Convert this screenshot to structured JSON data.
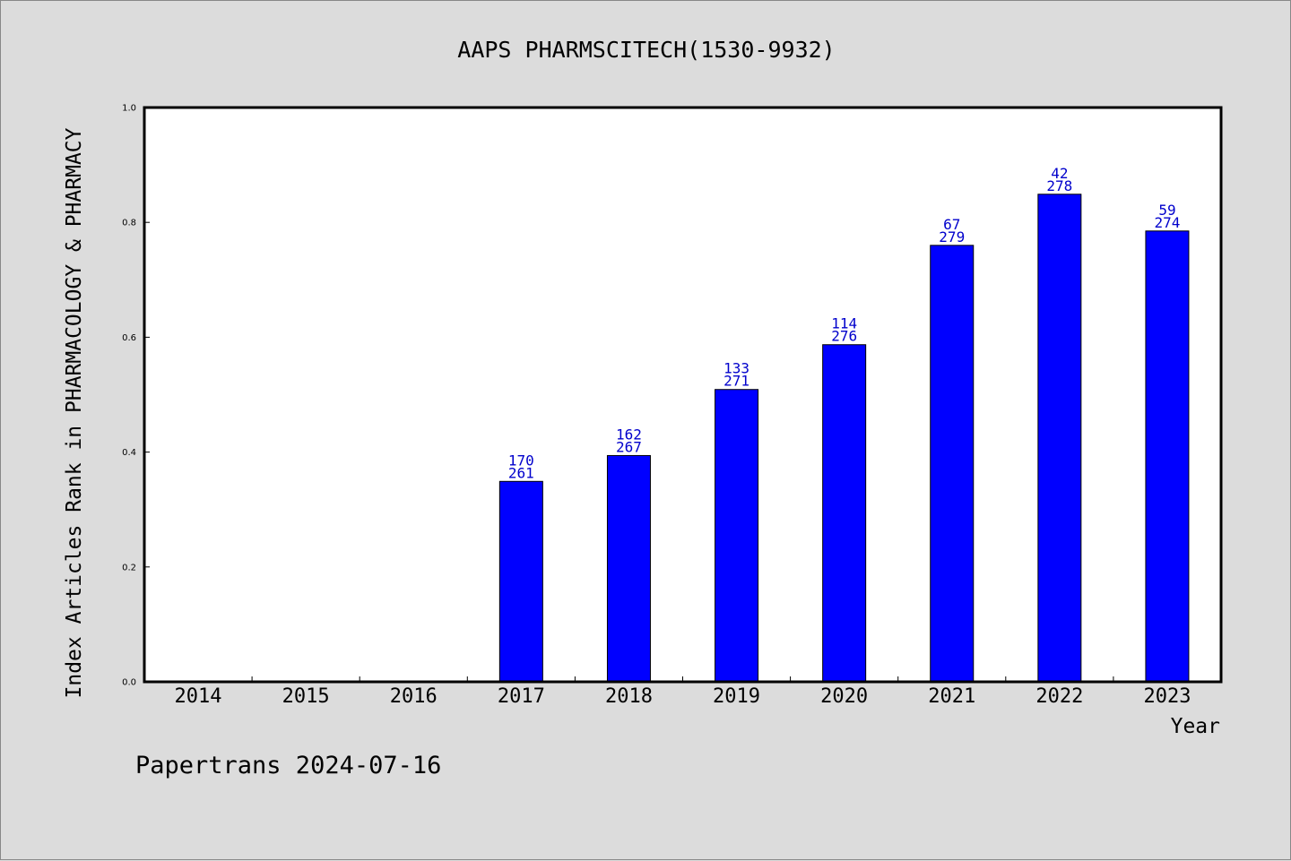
{
  "footer": "Papertrans 2024-07-16",
  "chart_data": {
    "type": "bar",
    "title": "AAPS PHARMSCITECH(1530-9932)",
    "xlabel": "Year",
    "ylabel": "Index Articles Rank in PHARMACOLOGY & PHARMACY",
    "ylim": [
      0,
      1.0
    ],
    "yticks": [
      "0.0",
      "0.2",
      "0.4",
      "0.6",
      "0.8",
      "1.0"
    ],
    "categories": [
      "2014",
      "2015",
      "2016",
      "2017",
      "2018",
      "2019",
      "2020",
      "2021",
      "2022",
      "2023"
    ],
    "values": [
      null,
      null,
      null,
      0.349,
      0.394,
      0.509,
      0.587,
      0.76,
      0.849,
      0.785
    ],
    "rank": [
      null,
      null,
      null,
      "170",
      "162",
      "133",
      "114",
      "67",
      "42",
      "59"
    ],
    "total": [
      null,
      null,
      null,
      "261",
      "267",
      "271",
      "276",
      "279",
      "278",
      "274"
    ],
    "bar_color": "#0000ff",
    "label_color": "#0000cc",
    "grid": false
  }
}
